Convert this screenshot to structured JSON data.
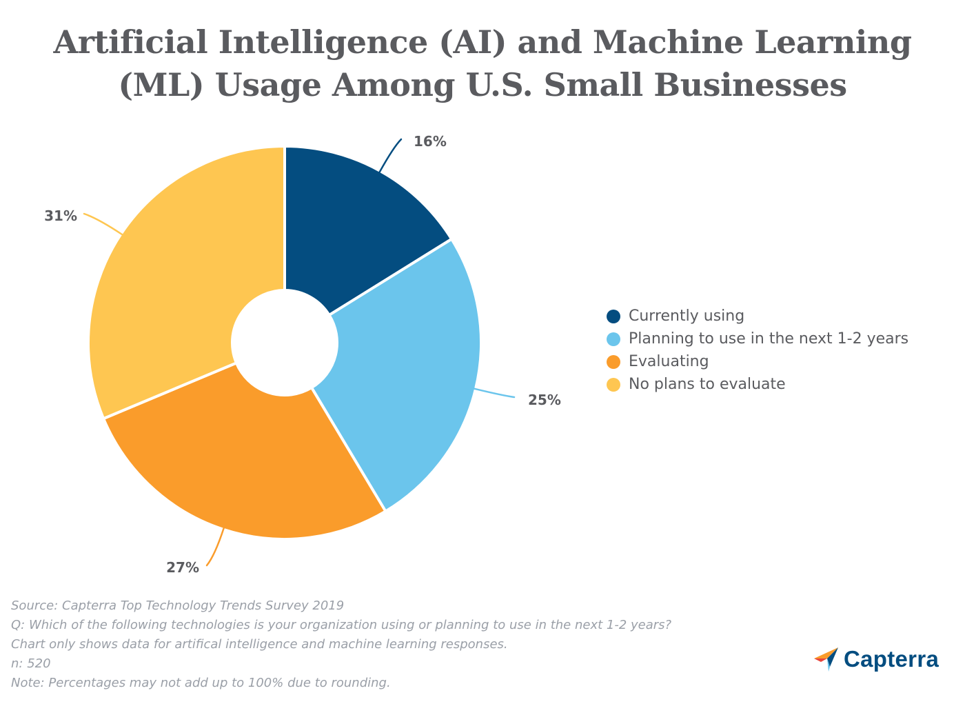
{
  "chart_data": {
    "type": "pie",
    "subtype": "donut",
    "title": "Artificial Intelligence (AI) and Machine Learning (ML) Usage Among U.S. Small Businesses",
    "categories": [
      "Currently using",
      "Planning to use in the next 1-2 years",
      "Evaluating",
      "No plans to evaluate"
    ],
    "values": [
      16,
      25,
      27,
      31
    ],
    "data_labels": [
      "16%",
      "25%",
      "27%",
      "31%"
    ],
    "colors": [
      "#044d80",
      "#6bc5ec",
      "#fa9c2b",
      "#fec651"
    ],
    "legend_position": "right"
  },
  "footnotes": {
    "source": "Source: Capterra Top Technology Trends Survey 2019",
    "question": "Q: Which of the following technologies is your organization using or planning to use in the next 1-2 years?",
    "scope": "Chart only shows data for artifical intelligence and machine learning responses.",
    "n": "n: 520",
    "note": "Note: Percentages may not add up to 100% due to rounding."
  },
  "brand": {
    "name": "Capterra",
    "icon": "capterra-logo-icon"
  },
  "colors": {
    "title": "#5a5b5f",
    "footnote": "#9a9fa7",
    "brand": "#044d80"
  }
}
